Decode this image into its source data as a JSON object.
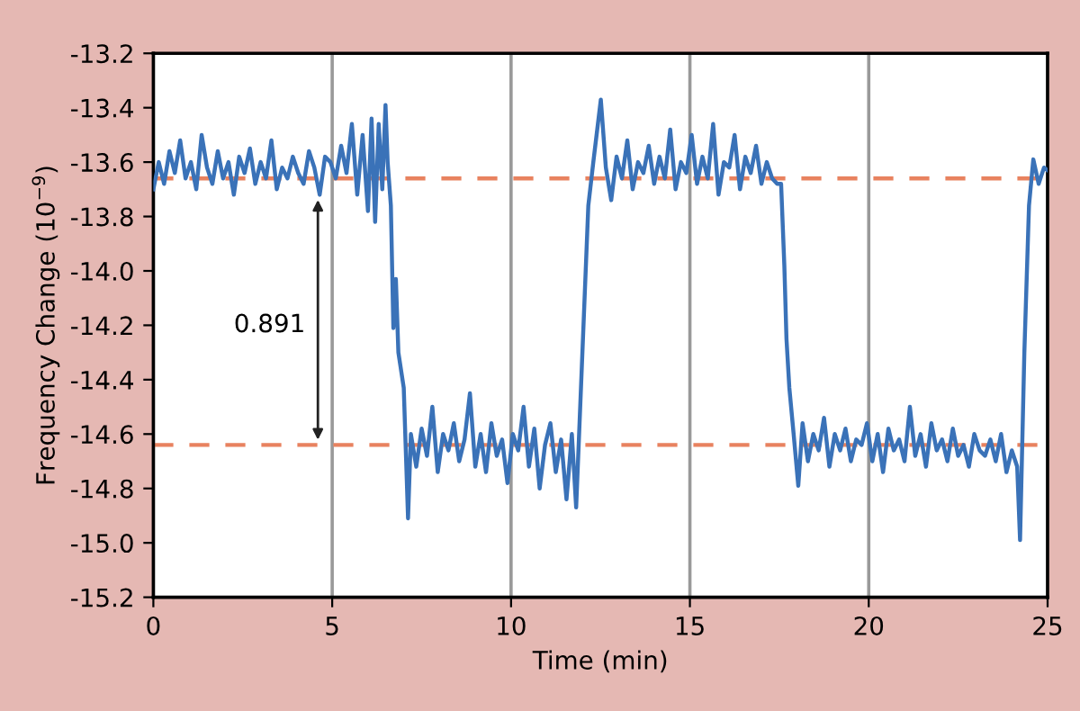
{
  "chart_data": {
    "type": "line",
    "xlabel": "Time (min)",
    "ylabel": "Frequency Change (10$^{−9}$)",
    "xlim": [
      0,
      25
    ],
    "ylim": [
      -15.2,
      -13.2
    ],
    "xticks": [
      0,
      5,
      10,
      15,
      20,
      25
    ],
    "yticks": [
      -13.2,
      -13.4,
      -13.6,
      -13.8,
      {
        "value": -14.0,
        "label": "-14.0"
      },
      -14.2,
      -14.4,
      -14.6,
      -14.8,
      {
        "value": -15.0,
        "label": "-15.0"
      },
      -15.2
    ],
    "grid": "x",
    "marker": "none",
    "line_style": "solid",
    "series": [
      {
        "color": "#3a72b8",
        "x": [
          0,
          0.15,
          0.3,
          0.45,
          0.6,
          0.75,
          0.9,
          1.05,
          1.2,
          1.35,
          1.5,
          1.65,
          1.8,
          1.95,
          2.1,
          2.25,
          2.4,
          2.55,
          2.7,
          2.85,
          3.0,
          3.15,
          3.3,
          3.45,
          3.6,
          3.75,
          3.9,
          4.05,
          4.2,
          4.35,
          4.5,
          4.65,
          4.8,
          4.95,
          5.1,
          5.25,
          5.4,
          5.55,
          5.7,
          5.85,
          6.0,
          6.1,
          6.2,
          6.3,
          6.4,
          6.49,
          6.55,
          6.64,
          6.71,
          6.78,
          6.85,
          7.0,
          7.12,
          7.2,
          7.35,
          7.5,
          7.65,
          7.8,
          7.95,
          8.1,
          8.25,
          8.4,
          8.55,
          8.7,
          8.85,
          9.0,
          9.15,
          9.3,
          9.45,
          9.6,
          9.75,
          9.9,
          10.05,
          10.2,
          10.35,
          10.5,
          10.65,
          10.8,
          10.95,
          11.1,
          11.25,
          11.4,
          11.55,
          11.7,
          11.82,
          12.16,
          12.3,
          12.51,
          12.65,
          12.8,
          12.95,
          13.1,
          13.25,
          13.4,
          13.55,
          13.7,
          13.85,
          14.0,
          14.15,
          14.3,
          14.45,
          14.6,
          14.75,
          14.9,
          15.05,
          15.2,
          15.35,
          15.5,
          15.65,
          15.8,
          15.95,
          16.1,
          16.25,
          16.4,
          16.55,
          16.7,
          16.85,
          17.0,
          17.15,
          17.3,
          17.44,
          17.55,
          17.64,
          17.7,
          17.78,
          17.9,
          18.03,
          18.15,
          18.3,
          18.45,
          18.6,
          18.75,
          18.9,
          19.05,
          19.2,
          19.35,
          19.5,
          19.65,
          19.8,
          19.95,
          20.1,
          20.25,
          20.4,
          20.55,
          20.7,
          20.85,
          21.0,
          21.15,
          21.3,
          21.45,
          21.6,
          21.75,
          21.9,
          22.05,
          22.2,
          22.35,
          22.5,
          22.65,
          22.8,
          22.95,
          23.1,
          23.25,
          23.4,
          23.55,
          23.7,
          23.85,
          24.0,
          24.15,
          24.23,
          24.35,
          24.48,
          24.6,
          24.75,
          24.9,
          25
        ],
        "values": [
          -13.7,
          -13.6,
          -13.68,
          -13.56,
          -13.64,
          -13.52,
          -13.66,
          -13.6,
          -13.7,
          -13.5,
          -13.62,
          -13.68,
          -13.56,
          -13.66,
          -13.6,
          -13.72,
          -13.58,
          -13.64,
          -13.55,
          -13.68,
          -13.6,
          -13.66,
          -13.52,
          -13.7,
          -13.62,
          -13.66,
          -13.58,
          -13.64,
          -13.68,
          -13.56,
          -13.62,
          -13.72,
          -13.58,
          -13.6,
          -13.66,
          -13.54,
          -13.64,
          -13.46,
          -13.72,
          -13.5,
          -13.78,
          -13.44,
          -13.82,
          -13.46,
          -13.7,
          -13.39,
          -13.6,
          -13.76,
          -14.21,
          -14.03,
          -14.3,
          -14.43,
          -14.91,
          -14.6,
          -14.72,
          -14.58,
          -14.68,
          -14.5,
          -14.74,
          -14.6,
          -14.66,
          -14.56,
          -14.7,
          -14.62,
          -14.45,
          -14.72,
          -14.6,
          -14.74,
          -14.56,
          -14.68,
          -14.62,
          -14.78,
          -14.6,
          -14.66,
          -14.5,
          -14.72,
          -14.58,
          -14.8,
          -14.64,
          -14.56,
          -14.74,
          -14.62,
          -14.84,
          -14.6,
          -14.87,
          -13.76,
          -13.6,
          -13.37,
          -13.62,
          -13.74,
          -13.58,
          -13.66,
          -13.52,
          -13.7,
          -13.6,
          -13.64,
          -13.54,
          -13.68,
          -13.58,
          -13.66,
          -13.48,
          -13.7,
          -13.6,
          -13.64,
          -13.5,
          -13.68,
          -13.58,
          -13.66,
          -13.46,
          -13.72,
          -13.6,
          -13.62,
          -13.5,
          -13.7,
          -13.58,
          -13.64,
          -13.54,
          -13.68,
          -13.6,
          -13.66,
          -13.68,
          -13.68,
          -13.98,
          -14.25,
          -14.43,
          -14.6,
          -14.79,
          -14.56,
          -14.7,
          -14.6,
          -14.66,
          -14.54,
          -14.72,
          -14.6,
          -14.66,
          -14.58,
          -14.7,
          -14.62,
          -14.64,
          -14.56,
          -14.7,
          -14.6,
          -14.74,
          -14.58,
          -14.66,
          -14.62,
          -14.7,
          -14.5,
          -14.68,
          -14.6,
          -14.72,
          -14.56,
          -14.66,
          -14.62,
          -14.7,
          -14.58,
          -14.68,
          -14.64,
          -14.72,
          -14.6,
          -14.66,
          -14.68,
          -14.62,
          -14.7,
          -14.6,
          -14.74,
          -14.66,
          -14.72,
          -14.99,
          -14.3,
          -13.76,
          -13.59,
          -13.68,
          -13.62,
          -13.63
        ]
      }
    ],
    "ref_lines": [
      {
        "axis": "y",
        "value": -13.66,
        "color": "#e8825f",
        "line_style": "dashed"
      },
      {
        "axis": "y",
        "value": -14.64,
        "color": "#e8825f",
        "line_style": "dashed"
      }
    ],
    "annotations": [
      "0.891"
    ]
  }
}
